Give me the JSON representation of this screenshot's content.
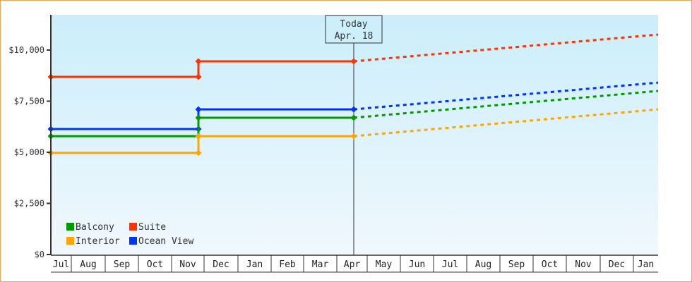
{
  "chart_data": {
    "type": "line",
    "title": "",
    "xlabel": "",
    "ylabel": "",
    "ylim": [
      0,
      11700
    ],
    "y_ticks": [
      "$0",
      "$2,500",
      "$5,000",
      "$7,500",
      "$10,000"
    ],
    "y_tick_values": [
      0,
      2500,
      5000,
      7500,
      10000
    ],
    "x_months": [
      "Jul",
      "Aug",
      "Sep",
      "Oct",
      "Nov",
      "Dec",
      "Jan",
      "Feb",
      "Mar",
      "Apr",
      "May",
      "Jun",
      "Jul",
      "Aug",
      "Sep",
      "Oct",
      "Nov",
      "Dec",
      "Jan"
    ],
    "today_marker": {
      "line1": "Today",
      "line2": "Apr. 18"
    },
    "legend": {
      "position": "bottom-left",
      "entries": [
        "Balcony",
        "Suite",
        "Interior",
        "Ocean View"
      ]
    },
    "series": [
      {
        "name": "Suite",
        "color": "#ff3300",
        "points": [
          {
            "date": "Jul",
            "value": 8690
          },
          {
            "date": "Nov",
            "value": 8690
          },
          {
            "date": "Nov",
            "value": 9450
          },
          {
            "date": "Apr 18",
            "value": 9450
          }
        ],
        "projection": [
          {
            "date": "Apr 18",
            "value": 9450
          },
          {
            "date": "Jan",
            "value": 10760
          }
        ]
      },
      {
        "name": "Ocean View",
        "color": "#0033ff",
        "points": [
          {
            "date": "Jul",
            "value": 6140
          },
          {
            "date": "Nov",
            "value": 6140
          },
          {
            "date": "Nov",
            "value": 7100
          },
          {
            "date": "Apr 18",
            "value": 7100
          }
        ],
        "projection": [
          {
            "date": "Apr 18",
            "value": 7100
          },
          {
            "date": "Jan",
            "value": 8410
          }
        ]
      },
      {
        "name": "Balcony",
        "color": "#009900",
        "points": [
          {
            "date": "Jul",
            "value": 5790
          },
          {
            "date": "Nov",
            "value": 5790
          },
          {
            "date": "Nov",
            "value": 6690
          },
          {
            "date": "Apr 18",
            "value": 6690
          }
        ],
        "projection": [
          {
            "date": "Apr 18",
            "value": 6690
          },
          {
            "date": "Jan",
            "value": 8000
          }
        ]
      },
      {
        "name": "Interior",
        "color": "#ffa500",
        "points": [
          {
            "date": "Jul",
            "value": 4970
          },
          {
            "date": "Nov",
            "value": 4970
          },
          {
            "date": "Nov",
            "value": 5790
          },
          {
            "date": "Apr 18",
            "value": 5790
          }
        ],
        "projection": [
          {
            "date": "Apr 18",
            "value": 5790
          },
          {
            "date": "Jan",
            "value": 7100
          }
        ]
      }
    ]
  }
}
